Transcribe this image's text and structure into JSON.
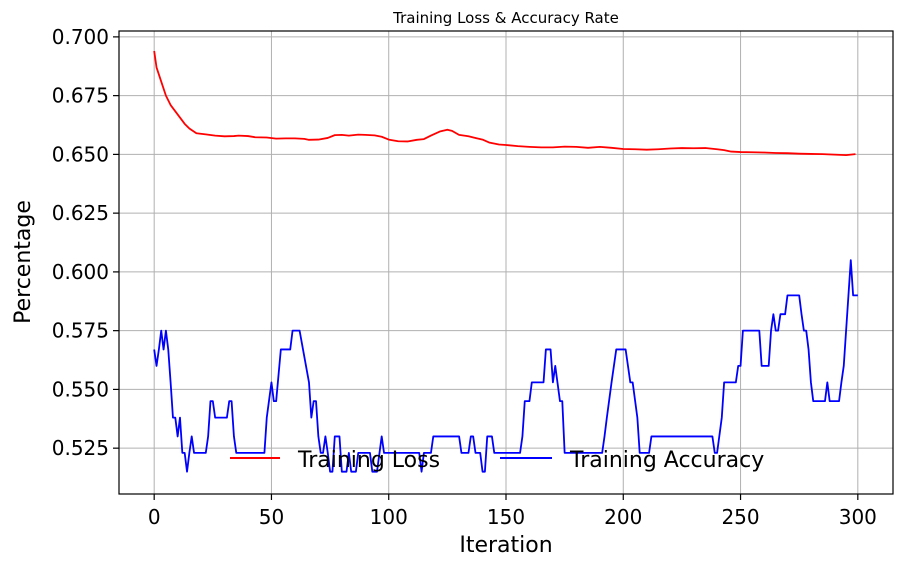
{
  "chart_data": {
    "type": "line",
    "title": "Training Loss & Accuracy Rate",
    "xlabel": "Iteration",
    "ylabel": "Percentage",
    "xlim": [
      -15,
      315
    ],
    "ylim": [
      0.5055,
      0.7025
    ],
    "xticks": [
      0,
      50,
      100,
      150,
      200,
      250,
      300
    ],
    "yticks": [
      0.525,
      0.55,
      0.575,
      0.6,
      0.625,
      0.65,
      0.675,
      0.7
    ],
    "ytick_labels": [
      "0.525",
      "0.550",
      "0.575",
      "0.600",
      "0.625",
      "0.650",
      "0.675",
      "0.700"
    ],
    "grid": true,
    "legend": {
      "placement": "bottom-center",
      "columns": 2
    },
    "series": [
      {
        "name": "Training Loss",
        "color": "#ff0000",
        "points": [
          [
            0,
            0.694
          ],
          [
            1,
            0.687
          ],
          [
            3,
            0.681
          ],
          [
            5,
            0.675
          ],
          [
            7,
            0.671
          ],
          [
            10,
            0.667
          ],
          [
            13,
            0.663
          ],
          [
            15,
            0.661
          ],
          [
            18,
            0.659
          ],
          [
            22,
            0.6585
          ],
          [
            26,
            0.658
          ],
          [
            30,
            0.6577
          ],
          [
            34,
            0.6578
          ],
          [
            36,
            0.658
          ],
          [
            40,
            0.6578
          ],
          [
            43,
            0.6573
          ],
          [
            48,
            0.6572
          ],
          [
            52,
            0.6567
          ],
          [
            56,
            0.6568
          ],
          [
            60,
            0.6568
          ],
          [
            64,
            0.6566
          ],
          [
            66,
            0.6562
          ],
          [
            70,
            0.6563
          ],
          [
            74,
            0.657
          ],
          [
            77,
            0.6582
          ],
          [
            80,
            0.6583
          ],
          [
            83,
            0.658
          ],
          [
            87,
            0.6584
          ],
          [
            90,
            0.6583
          ],
          [
            94,
            0.6581
          ],
          [
            97,
            0.6575
          ],
          [
            100,
            0.6563
          ],
          [
            104,
            0.6556
          ],
          [
            108,
            0.6555
          ],
          [
            112,
            0.6562
          ],
          [
            115,
            0.6565
          ],
          [
            118,
            0.658
          ],
          [
            122,
            0.6598
          ],
          [
            125,
            0.6605
          ],
          [
            127,
            0.66
          ],
          [
            130,
            0.6583
          ],
          [
            134,
            0.6577
          ],
          [
            137,
            0.657
          ],
          [
            140,
            0.6563
          ],
          [
            143,
            0.655
          ],
          [
            147,
            0.6542
          ],
          [
            150,
            0.654
          ],
          [
            155,
            0.6535
          ],
          [
            160,
            0.6532
          ],
          [
            165,
            0.653
          ],
          [
            170,
            0.653
          ],
          [
            175,
            0.6533
          ],
          [
            180,
            0.6532
          ],
          [
            185,
            0.6528
          ],
          [
            190,
            0.6532
          ],
          [
            195,
            0.6528
          ],
          [
            200,
            0.6523
          ],
          [
            205,
            0.6522
          ],
          [
            210,
            0.652
          ],
          [
            215,
            0.6522
          ],
          [
            220,
            0.6525
          ],
          [
            225,
            0.6527
          ],
          [
            230,
            0.6526
          ],
          [
            235,
            0.6527
          ],
          [
            240,
            0.6522
          ],
          [
            243,
            0.6518
          ],
          [
            246,
            0.6512
          ],
          [
            250,
            0.651
          ],
          [
            255,
            0.6509
          ],
          [
            260,
            0.6508
          ],
          [
            265,
            0.6506
          ],
          [
            270,
            0.6505
          ],
          [
            275,
            0.6503
          ],
          [
            280,
            0.6502
          ],
          [
            285,
            0.6501
          ],
          [
            290,
            0.6499
          ],
          [
            295,
            0.6497
          ],
          [
            299,
            0.6501
          ]
        ]
      },
      {
        "name": "Training Accuracy",
        "color": "#0000ff",
        "points": [
          [
            0,
            0.567
          ],
          [
            1,
            0.56
          ],
          [
            2,
            0.567
          ],
          [
            3,
            0.575
          ],
          [
            4,
            0.567
          ],
          [
            5,
            0.575
          ],
          [
            6,
            0.567
          ],
          [
            7,
            0.553
          ],
          [
            8,
            0.538
          ],
          [
            9,
            0.538
          ],
          [
            10,
            0.53
          ],
          [
            11,
            0.538
          ],
          [
            12,
            0.523
          ],
          [
            13,
            0.523
          ],
          [
            14,
            0.515
          ],
          [
            15,
            0.523
          ],
          [
            16,
            0.53
          ],
          [
            17,
            0.523
          ],
          [
            18,
            0.523
          ],
          [
            22,
            0.523
          ],
          [
            23,
            0.53
          ],
          [
            24,
            0.545
          ],
          [
            25,
            0.545
          ],
          [
            26,
            0.538
          ],
          [
            31,
            0.538
          ],
          [
            32,
            0.545
          ],
          [
            33,
            0.545
          ],
          [
            34,
            0.53
          ],
          [
            35,
            0.523
          ],
          [
            47,
            0.523
          ],
          [
            48,
            0.538
          ],
          [
            50,
            0.553
          ],
          [
            51,
            0.545
          ],
          [
            52,
            0.545
          ],
          [
            54,
            0.567
          ],
          [
            58,
            0.567
          ],
          [
            59,
            0.575
          ],
          [
            62,
            0.575
          ],
          [
            66,
            0.553
          ],
          [
            67,
            0.538
          ],
          [
            68,
            0.545
          ],
          [
            69,
            0.545
          ],
          [
            70,
            0.53
          ],
          [
            71,
            0.523
          ],
          [
            72,
            0.523
          ],
          [
            73,
            0.53
          ],
          [
            74,
            0.523
          ],
          [
            75,
            0.515
          ],
          [
            76,
            0.515
          ],
          [
            77,
            0.53
          ],
          [
            79,
            0.53
          ],
          [
            80,
            0.515
          ],
          [
            82,
            0.515
          ],
          [
            83,
            0.523
          ],
          [
            84,
            0.515
          ],
          [
            86,
            0.515
          ],
          [
            87,
            0.523
          ],
          [
            92,
            0.523
          ],
          [
            93,
            0.515
          ],
          [
            95,
            0.515
          ],
          [
            97,
            0.53
          ],
          [
            98,
            0.523
          ],
          [
            113,
            0.523
          ],
          [
            114,
            0.515
          ],
          [
            115,
            0.523
          ],
          [
            118,
            0.523
          ],
          [
            119,
            0.53
          ],
          [
            130,
            0.53
          ],
          [
            131,
            0.523
          ],
          [
            134,
            0.523
          ],
          [
            135,
            0.53
          ],
          [
            136,
            0.53
          ],
          [
            137,
            0.523
          ],
          [
            139,
            0.523
          ],
          [
            140,
            0.515
          ],
          [
            141,
            0.515
          ],
          [
            142,
            0.53
          ],
          [
            144,
            0.53
          ],
          [
            145,
            0.523
          ],
          [
            156,
            0.523
          ],
          [
            157,
            0.53
          ],
          [
            158,
            0.545
          ],
          [
            160,
            0.545
          ],
          [
            161,
            0.553
          ],
          [
            166,
            0.553
          ],
          [
            167,
            0.567
          ],
          [
            169,
            0.567
          ],
          [
            170,
            0.553
          ],
          [
            171,
            0.56
          ],
          [
            173,
            0.545
          ],
          [
            174,
            0.545
          ],
          [
            175,
            0.523
          ],
          [
            191,
            0.523
          ],
          [
            192,
            0.53
          ],
          [
            193,
            0.538
          ],
          [
            195,
            0.553
          ],
          [
            197,
            0.567
          ],
          [
            201,
            0.567
          ],
          [
            202,
            0.56
          ],
          [
            203,
            0.553
          ],
          [
            204,
            0.553
          ],
          [
            206,
            0.538
          ],
          [
            207,
            0.523
          ],
          [
            211,
            0.523
          ],
          [
            212,
            0.53
          ],
          [
            238,
            0.53
          ],
          [
            239,
            0.523
          ],
          [
            240,
            0.523
          ],
          [
            242,
            0.538
          ],
          [
            243,
            0.553
          ],
          [
            248,
            0.553
          ],
          [
            249,
            0.56
          ],
          [
            250,
            0.56
          ],
          [
            251,
            0.575
          ],
          [
            258,
            0.575
          ],
          [
            259,
            0.56
          ],
          [
            262,
            0.56
          ],
          [
            263,
            0.575
          ],
          [
            264,
            0.582
          ],
          [
            265,
            0.575
          ],
          [
            266,
            0.575
          ],
          [
            267,
            0.582
          ],
          [
            269,
            0.582
          ],
          [
            270,
            0.59
          ],
          [
            275,
            0.59
          ],
          [
            276,
            0.582
          ],
          [
            277,
            0.575
          ],
          [
            278,
            0.575
          ],
          [
            279,
            0.567
          ],
          [
            280,
            0.553
          ],
          [
            281,
            0.545
          ],
          [
            286,
            0.545
          ],
          [
            287,
            0.553
          ],
          [
            288,
            0.545
          ],
          [
            292,
            0.545
          ],
          [
            293,
            0.553
          ],
          [
            294,
            0.56
          ],
          [
            295,
            0.575
          ],
          [
            296,
            0.59
          ],
          [
            297,
            0.605
          ],
          [
            298,
            0.59
          ],
          [
            300,
            0.59
          ]
        ]
      }
    ]
  }
}
